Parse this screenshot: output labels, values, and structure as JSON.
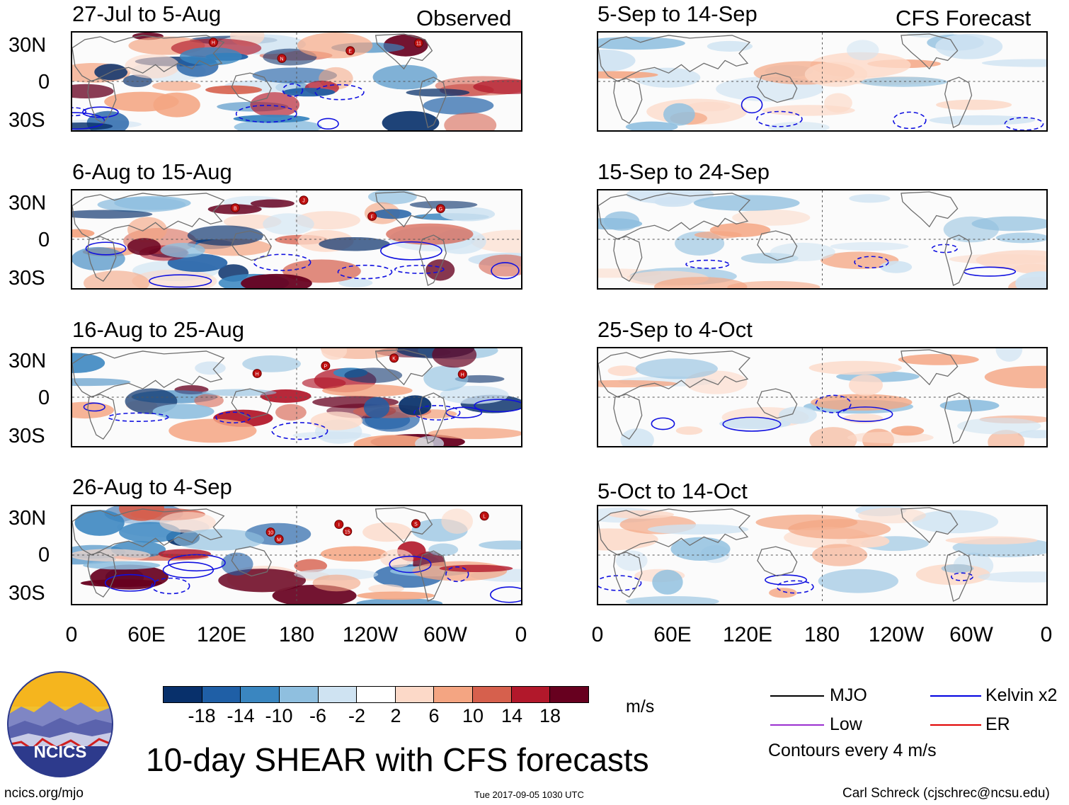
{
  "columns": {
    "observed": "Observed",
    "forecast": "CFS Forecast"
  },
  "panels": [
    {
      "title": "27-Jul to 5-Aug",
      "kind": "observed",
      "storms": [
        "H",
        "N",
        "E",
        "11"
      ]
    },
    {
      "title": "6-Aug to 15-Aug",
      "kind": "observed",
      "storms": [
        "B",
        "J",
        "F",
        "G"
      ]
    },
    {
      "title": "16-Aug to 25-Aug",
      "kind": "observed",
      "storms": [
        "H",
        "P",
        "K",
        "H"
      ]
    },
    {
      "title": "26-Aug to 4-Sep",
      "kind": "observed",
      "storms": [
        "M",
        "15",
        "S",
        "L",
        "10",
        "I"
      ]
    },
    {
      "title": "5-Sep to 14-Sep",
      "kind": "forecast",
      "storms": []
    },
    {
      "title": "15-Sep to 24-Sep",
      "kind": "forecast",
      "storms": []
    },
    {
      "title": "25-Sep to 4-Oct",
      "kind": "forecast",
      "storms": []
    },
    {
      "title": "5-Oct to 14-Oct",
      "kind": "forecast",
      "storms": []
    }
  ],
  "lat_labels": [
    "30N",
    "0",
    "30S"
  ],
  "lon_labels": [
    "0",
    "60E",
    "120E",
    "180",
    "120W",
    "60W",
    "0"
  ],
  "colorbar": {
    "colors": [
      "#08306b",
      "#1f5fa6",
      "#3a86c0",
      "#8fbfdf",
      "#cfe3f2",
      "#ffffff",
      "#fcd9c8",
      "#f4a582",
      "#d6604d",
      "#b2182b",
      "#67001f"
    ],
    "tick_labels": [
      "-18",
      "-14",
      "-10",
      "-6",
      "-2",
      "2",
      "6",
      "10",
      "14",
      "18"
    ],
    "units": "m/s"
  },
  "main_title": "10-day SHEAR with CFS forecasts",
  "logo_text": "NCICS",
  "legend": {
    "items": [
      {
        "label": "MJO",
        "color": "#000000"
      },
      {
        "label": "Kelvin x2",
        "color": "#0000e0"
      },
      {
        "label": "Low",
        "color": "#9b30d0"
      },
      {
        "label": "ER",
        "color": "#e00000"
      }
    ],
    "note": "Contours every 4 m/s"
  },
  "footer": {
    "url": "ncics.org/mjo",
    "timestamp": "Tue 2017-09-05 1030 UTC",
    "credit": "Carl Schreck (cjschrec@ncsu.edu)"
  }
}
